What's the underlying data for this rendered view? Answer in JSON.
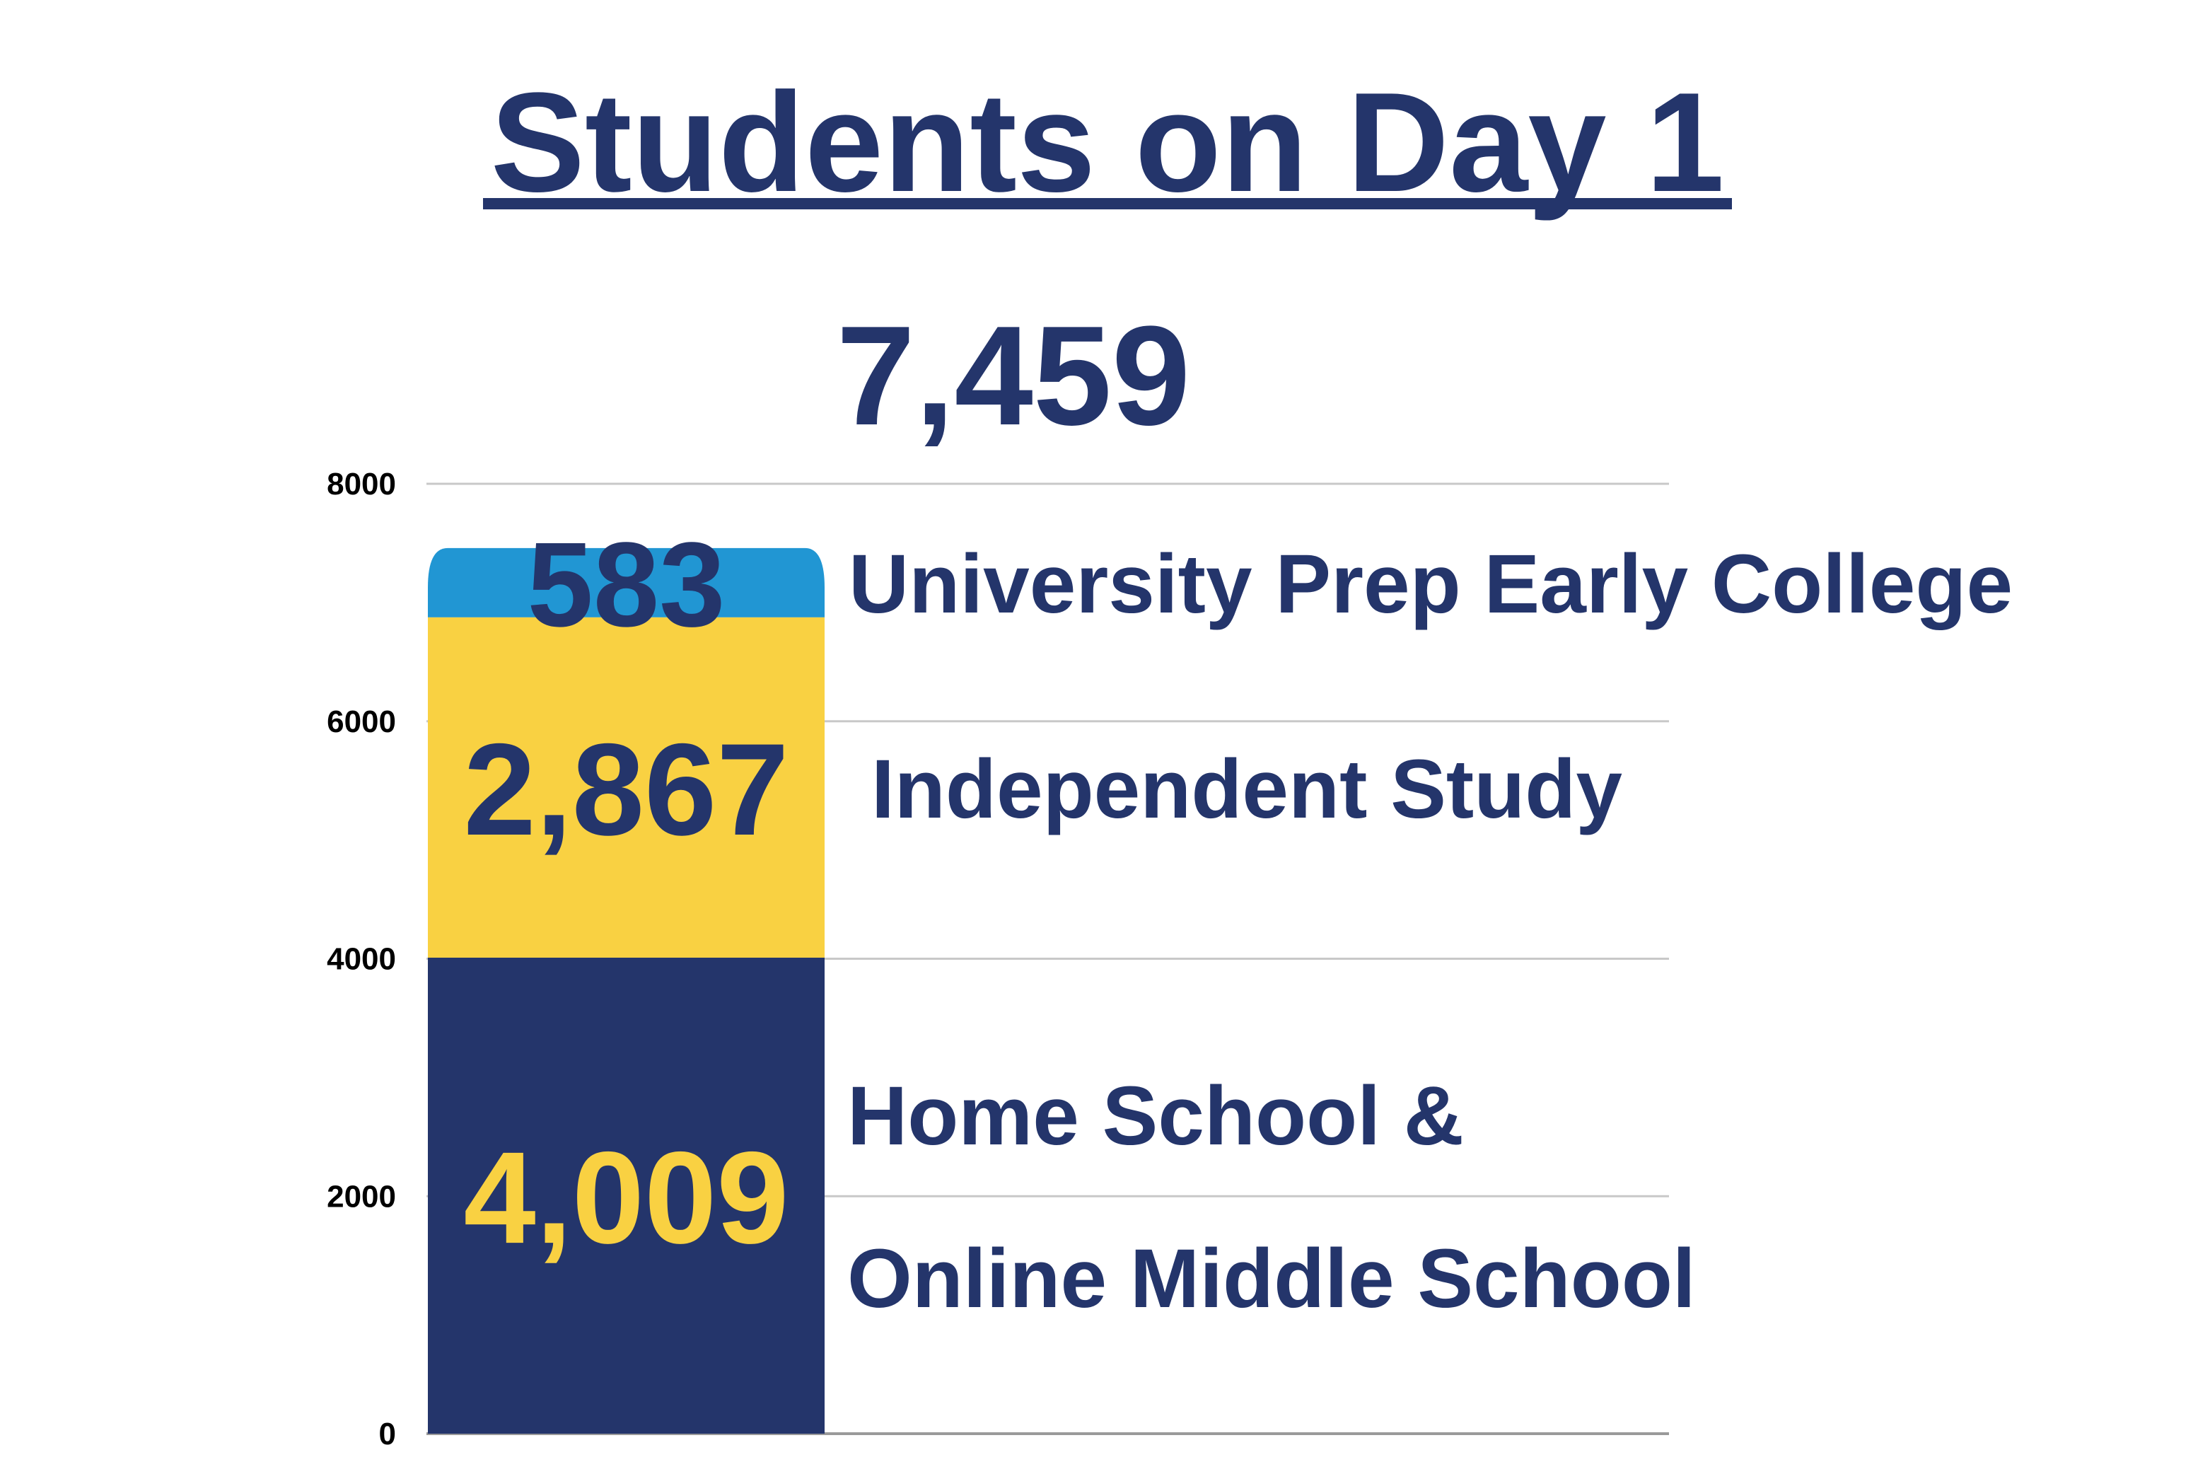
{
  "chart_data": {
    "type": "bar",
    "stacked": true,
    "title": "Students on Day 1",
    "total_label": "7,459",
    "xlabel": "",
    "ylabel": "",
    "ylim": [
      0,
      8000
    ],
    "yticks": [
      0,
      2000,
      4000,
      6000,
      8000
    ],
    "grid": true,
    "legend": "none",
    "series": [
      {
        "name": "Home School & Online Middle School",
        "value": 4009,
        "value_label": "4,009",
        "label_lines": [
          "Home School &",
          "Online Middle School"
        ],
        "color": "#24356b",
        "text_color": "#f9d142"
      },
      {
        "name": "Independent Study",
        "value": 2867,
        "value_label": "2,867",
        "label_lines": [
          "Independent Study"
        ],
        "color": "#f9d142",
        "text_color": "#24356b"
      },
      {
        "name": "University Prep Early College",
        "value": 583,
        "value_label": "583",
        "label_lines": [
          "University Prep Early College"
        ],
        "color": "#2196d3",
        "text_color": "#24356b"
      }
    ],
    "colors": {
      "title": "#24356b",
      "grid": "#c8c8c8",
      "axis_text": "#000000"
    }
  }
}
